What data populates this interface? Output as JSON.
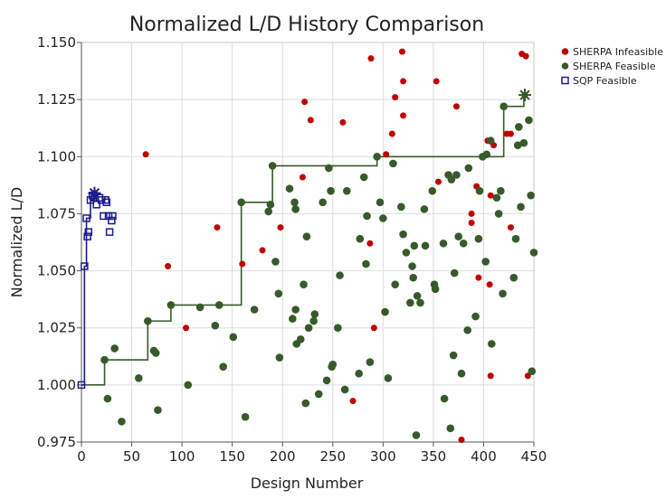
{
  "chart_data": {
    "type": "scatter",
    "title": "Normalized L/D History Comparison",
    "xlabel": "Design Number",
    "ylabel": "Normalized L/D",
    "xlim": [
      0,
      450
    ],
    "ylim": [
      0.975,
      1.15
    ],
    "x_ticks": [
      "0",
      "50",
      "100",
      "150",
      "200",
      "250",
      "300",
      "350",
      "400",
      "450"
    ],
    "y_ticks": [
      "0.975",
      "1.000",
      "1.025",
      "1.050",
      "1.075",
      "1.100",
      "1.125",
      "1.150"
    ],
    "grid": true,
    "legend_position": "top-right",
    "series": [
      {
        "name": "SHERPA Infeasible",
        "color": "#c00000",
        "marker": "circle",
        "points": [
          [
            64,
            1.101
          ],
          [
            86,
            1.052
          ],
          [
            104,
            1.025
          ],
          [
            135,
            1.069
          ],
          [
            160,
            1.053
          ],
          [
            180,
            1.059
          ],
          [
            198,
            1.069
          ],
          [
            220,
            1.091
          ],
          [
            222,
            1.124
          ],
          [
            228,
            1.116
          ],
          [
            260,
            1.115
          ],
          [
            270,
            0.993
          ],
          [
            287,
            1.062
          ],
          [
            288,
            1.143
          ],
          [
            291,
            1.025
          ],
          [
            303,
            1.101
          ],
          [
            309,
            1.11
          ],
          [
            312,
            1.126
          ],
          [
            319,
            1.146
          ],
          [
            320,
            1.133
          ],
          [
            320,
            1.118
          ],
          [
            353,
            1.133
          ],
          [
            355,
            1.089
          ],
          [
            373,
            1.122
          ],
          [
            378,
            0.976
          ],
          [
            388,
            1.075
          ],
          [
            388,
            1.071
          ],
          [
            393,
            1.087
          ],
          [
            395,
            1.047
          ],
          [
            404,
            1.107
          ],
          [
            406,
            1.044
          ],
          [
            407,
            1.004
          ],
          [
            407,
            1.083
          ],
          [
            410,
            1.105
          ],
          [
            423,
            1.11
          ],
          [
            427,
            1.11
          ],
          [
            438,
            1.145
          ],
          [
            442,
            1.144
          ],
          [
            444,
            1.004
          ],
          [
            427,
            1.069
          ]
        ]
      },
      {
        "name": "SHERPA Feasible",
        "color": "#375a2b",
        "marker": "circle",
        "points": [
          [
            23,
            1.011
          ],
          [
            26,
            0.994
          ],
          [
            33,
            1.016
          ],
          [
            40,
            0.984
          ],
          [
            57,
            1.003
          ],
          [
            66,
            1.028
          ],
          [
            72,
            1.015
          ],
          [
            74,
            1.014
          ],
          [
            76,
            0.989
          ],
          [
            89,
            1.035
          ],
          [
            106,
            1.0
          ],
          [
            118,
            1.034
          ],
          [
            133,
            1.026
          ],
          [
            137,
            1.035
          ],
          [
            141,
            1.008
          ],
          [
            151,
            1.021
          ],
          [
            159,
            1.08
          ],
          [
            163,
            0.986
          ],
          [
            172,
            1.033
          ],
          [
            186,
            1.076
          ],
          [
            188,
            1.079
          ],
          [
            190,
            1.096
          ],
          [
            193,
            1.054
          ],
          [
            196,
            1.04
          ],
          [
            197,
            1.012
          ],
          [
            207,
            1.086
          ],
          [
            210,
            1.029
          ],
          [
            212,
            1.08
          ],
          [
            213,
            1.077
          ],
          [
            213,
            1.033
          ],
          [
            214,
            1.018
          ],
          [
            218,
            1.02
          ],
          [
            221,
            1.044
          ],
          [
            223,
            0.992
          ],
          [
            224,
            1.065
          ],
          [
            226,
            1.025
          ],
          [
            231,
            1.028
          ],
          [
            232,
            1.031
          ],
          [
            236,
            0.996
          ],
          [
            240,
            1.08
          ],
          [
            244,
            1.002
          ],
          [
            246,
            1.095
          ],
          [
            248,
            1.085
          ],
          [
            249,
            1.008
          ],
          [
            250,
            1.009
          ],
          [
            255,
            1.025
          ],
          [
            257,
            1.048
          ],
          [
            262,
            0.998
          ],
          [
            264,
            1.085
          ],
          [
            276,
            1.005
          ],
          [
            277,
            1.064
          ],
          [
            281,
            1.091
          ],
          [
            283,
            1.053
          ],
          [
            284,
            1.074
          ],
          [
            287,
            1.01
          ],
          [
            294,
            1.1
          ],
          [
            297,
            1.08
          ],
          [
            300,
            1.073
          ],
          [
            302,
            1.032
          ],
          [
            305,
            1.003
          ],
          [
            310,
            1.097
          ],
          [
            312,
            1.044
          ],
          [
            318,
            1.078
          ],
          [
            320,
            1.066
          ],
          [
            323,
            1.058
          ],
          [
            327,
            1.036
          ],
          [
            329,
            1.052
          ],
          [
            330,
            1.047
          ],
          [
            331,
            1.061
          ],
          [
            333,
            0.978
          ],
          [
            334,
            1.039
          ],
          [
            337,
            1.036
          ],
          [
            341,
            1.077
          ],
          [
            342,
            1.061
          ],
          [
            349,
            1.085
          ],
          [
            351,
            1.044
          ],
          [
            352,
            1.042
          ],
          [
            360,
            1.062
          ],
          [
            361,
            0.994
          ],
          [
            365,
            1.092
          ],
          [
            367,
            0.981
          ],
          [
            368,
            1.09
          ],
          [
            370,
            1.013
          ],
          [
            371,
            1.049
          ],
          [
            373,
            1.092
          ],
          [
            375,
            1.065
          ],
          [
            378,
            1.005
          ],
          [
            380,
            1.062
          ],
          [
            384,
            1.024
          ],
          [
            385,
            1.095
          ],
          [
            392,
            1.03
          ],
          [
            395,
            1.064
          ],
          [
            396,
            1.085
          ],
          [
            399,
            1.1
          ],
          [
            402,
            1.054
          ],
          [
            403,
            1.101
          ],
          [
            407,
            1.107
          ],
          [
            408,
            1.018
          ],
          [
            413,
            1.082
          ],
          [
            415,
            1.075
          ],
          [
            417,
            1.085
          ],
          [
            419,
            1.04
          ],
          [
            420,
            1.122
          ],
          [
            430,
            1.047
          ],
          [
            432,
            1.064
          ],
          [
            434,
            1.105
          ],
          [
            435,
            1.113
          ],
          [
            437,
            1.078
          ],
          [
            440,
            1.106
          ],
          [
            445,
            1.116
          ],
          [
            447,
            1.083
          ],
          [
            448,
            1.006
          ],
          [
            450,
            1.058
          ]
        ]
      },
      {
        "name": "SQP Feasible",
        "color": "#1c1c8c",
        "marker": "square-open",
        "points": [
          [
            0,
            1.0
          ],
          [
            3,
            1.052
          ],
          [
            5,
            1.073
          ],
          [
            6,
            1.065
          ],
          [
            7,
            1.067
          ],
          [
            9,
            1.081
          ],
          [
            11,
            1.083
          ],
          [
            13,
            1.082
          ],
          [
            15,
            1.079
          ],
          [
            18,
            1.082
          ],
          [
            20,
            1.081
          ],
          [
            22,
            1.074
          ],
          [
            24,
            1.081
          ],
          [
            25,
            1.08
          ],
          [
            27,
            1.074
          ],
          [
            28,
            1.067
          ],
          [
            30,
            1.072
          ],
          [
            31,
            1.074
          ]
        ]
      }
    ],
    "best_history": [
      {
        "name": "SHERPA Feasible",
        "color": "#375a2b",
        "steps": [
          [
            0,
            1.0
          ],
          [
            23,
            1.011
          ],
          [
            66,
            1.028
          ],
          [
            89,
            1.035
          ],
          [
            159,
            1.08
          ],
          [
            190,
            1.096
          ],
          [
            294,
            1.1
          ],
          [
            399,
            1.1
          ],
          [
            420,
            1.122
          ],
          [
            440,
            1.127
          ],
          [
            443,
            1.127
          ]
        ],
        "best": [
          441,
          1.127
        ]
      },
      {
        "name": "SQP Feasible",
        "color": "#1c1c8c",
        "steps": [
          [
            0,
            1.0
          ],
          [
            3,
            1.052
          ],
          [
            5,
            1.073
          ],
          [
            9,
            1.081
          ],
          [
            13,
            1.084
          ],
          [
            14,
            1.084
          ]
        ],
        "best": [
          13,
          1.084
        ]
      }
    ]
  }
}
